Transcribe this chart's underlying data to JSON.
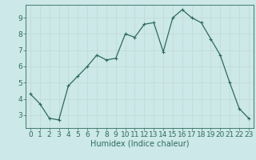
{
  "x": [
    0,
    1,
    2,
    3,
    4,
    5,
    6,
    7,
    8,
    9,
    10,
    11,
    12,
    13,
    14,
    15,
    16,
    17,
    18,
    19,
    20,
    21,
    22,
    23
  ],
  "y": [
    4.3,
    3.7,
    2.8,
    2.7,
    4.8,
    5.4,
    6.0,
    6.7,
    6.4,
    6.5,
    8.0,
    7.8,
    8.6,
    8.7,
    6.9,
    9.0,
    9.5,
    9.0,
    8.7,
    7.7,
    6.7,
    5.0,
    3.4,
    2.8
  ],
  "line_color": "#2e6b5e",
  "marker": "+",
  "marker_size": 3,
  "marker_linewidth": 0.8,
  "background_color": "#cce8e8",
  "grid_color": "#c0d8d0",
  "xlabel": "Humidex (Indice chaleur)",
  "xlabel_fontsize": 7,
  "tick_fontsize": 6.5,
  "ylim": [
    2.2,
    9.8
  ],
  "yticks": [
    3,
    4,
    5,
    6,
    7,
    8,
    9
  ],
  "xlim": [
    -0.5,
    23.5
  ],
  "xticks": [
    0,
    1,
    2,
    3,
    4,
    5,
    6,
    7,
    8,
    9,
    10,
    11,
    12,
    13,
    14,
    15,
    16,
    17,
    18,
    19,
    20,
    21,
    22,
    23
  ],
  "linewidth": 0.9
}
